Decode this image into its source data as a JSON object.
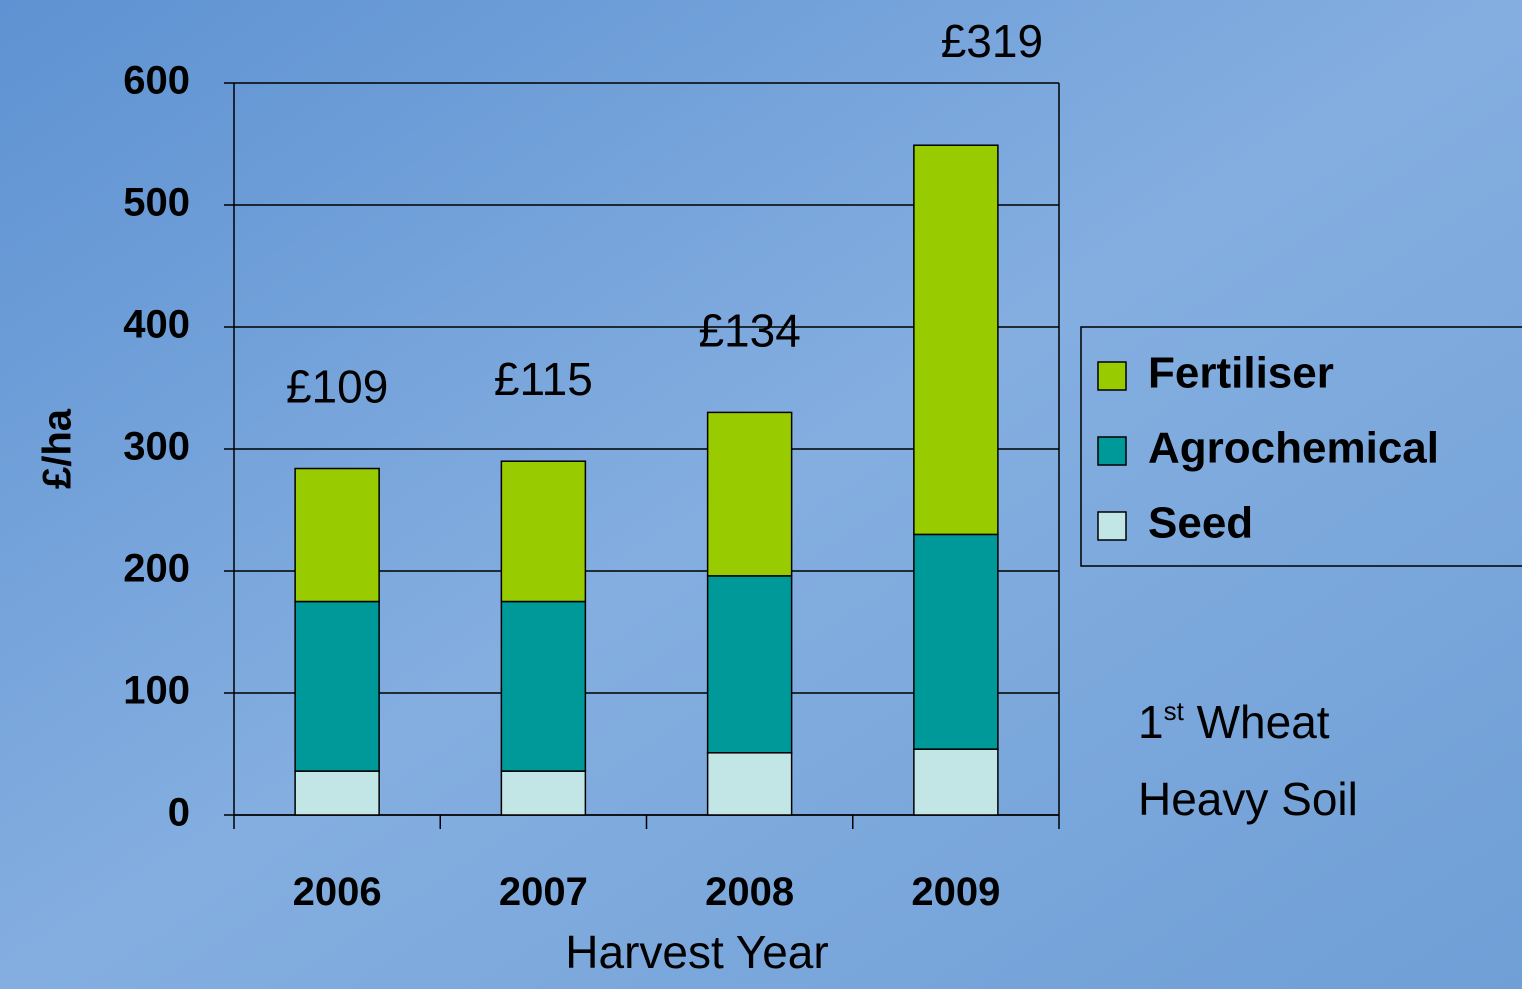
{
  "chart_data": {
    "type": "stacked_bar",
    "categories": [
      "2006",
      "2007",
      "2008",
      "2009"
    ],
    "series": [
      {
        "name": "Seed",
        "color": "#c2e6e6",
        "values": [
          36,
          36,
          51,
          54
        ]
      },
      {
        "name": "Agrochemical",
        "color": "#009999",
        "values": [
          139,
          139,
          145,
          176
        ]
      },
      {
        "name": "Fertiliser",
        "color": "#99cc00",
        "values": [
          109,
          115,
          134,
          319
        ],
        "value_labels": [
          "£109",
          "£115",
          "£134",
          "£319"
        ]
      }
    ],
    "ylim": [
      0,
      600
    ],
    "yticks": [
      0,
      100,
      200,
      300,
      400,
      500,
      600
    ],
    "grid": true,
    "ylabel": "£/ha",
    "xlabel": "Harvest Year",
    "legend": "right",
    "annotation": [
      "1",
      "st",
      " Wheat",
      "Heavy Soil"
    ]
  }
}
